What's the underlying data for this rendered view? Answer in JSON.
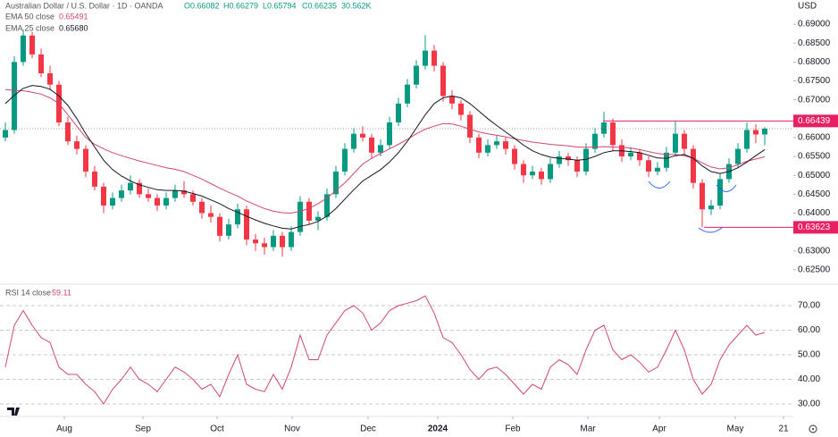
{
  "chart_data": [
    {
      "type": "candlestick",
      "title": "Australian Dollar / U.S. Dollar · 1D · OANDA",
      "currency": "USD",
      "ohlc_labels": [
        "O0.66082",
        "H0.66279",
        "L0.65794",
        "C0.66235",
        "30.562K"
      ],
      "up_color": "#089981",
      "down_color": "#f23645",
      "candles": [
        [
          0.66,
          0.664,
          0.659,
          0.662
        ],
        [
          0.662,
          0.6815,
          0.661,
          0.68
        ],
        [
          0.68,
          0.6885,
          0.679,
          0.687
        ],
        [
          0.687,
          0.688,
          0.681,
          0.682
        ],
        [
          0.682,
          0.6835,
          0.676,
          0.677
        ],
        [
          0.677,
          0.679,
          0.6725,
          0.674
        ],
        [
          0.674,
          0.675,
          0.663,
          0.664
        ],
        [
          0.664,
          0.6655,
          0.658,
          0.659
        ],
        [
          0.659,
          0.6605,
          0.6555,
          0.657
        ],
        [
          0.657,
          0.658,
          0.6495,
          0.651
        ],
        [
          0.651,
          0.6525,
          0.646,
          0.647
        ],
        [
          0.647,
          0.648,
          0.64,
          0.642
        ],
        [
          0.642,
          0.6455,
          0.641,
          0.644
        ],
        [
          0.644,
          0.6475,
          0.643,
          0.646
        ],
        [
          0.646,
          0.65,
          0.645,
          0.648
        ],
        [
          0.648,
          0.649,
          0.644,
          0.645
        ],
        [
          0.645,
          0.6465,
          0.643,
          0.644
        ],
        [
          0.644,
          0.645,
          0.6405,
          0.642
        ],
        [
          0.642,
          0.6455,
          0.641,
          0.644
        ],
        [
          0.644,
          0.6475,
          0.643,
          0.646
        ],
        [
          0.646,
          0.6485,
          0.644,
          0.645
        ],
        [
          0.645,
          0.646,
          0.642,
          0.643
        ],
        [
          0.643,
          0.644,
          0.6385,
          0.64
        ],
        [
          0.64,
          0.642,
          0.6375,
          0.639
        ],
        [
          0.639,
          0.64,
          0.6325,
          0.634
        ],
        [
          0.634,
          0.6385,
          0.633,
          0.637
        ],
        [
          0.637,
          0.6425,
          0.636,
          0.641
        ],
        [
          0.641,
          0.642,
          0.6315,
          0.633
        ],
        [
          0.633,
          0.6345,
          0.63,
          0.632
        ],
        [
          0.632,
          0.6335,
          0.629,
          0.631
        ],
        [
          0.631,
          0.6355,
          0.63,
          0.634
        ],
        [
          0.634,
          0.635,
          0.6285,
          0.631
        ],
        [
          0.631,
          0.6365,
          0.63,
          0.635
        ],
        [
          0.635,
          0.6445,
          0.634,
          0.643
        ],
        [
          0.643,
          0.644,
          0.637,
          0.638
        ],
        [
          0.638,
          0.6405,
          0.6355,
          0.639
        ],
        [
          0.639,
          0.6465,
          0.638,
          0.645
        ],
        [
          0.645,
          0.6525,
          0.644,
          0.651
        ],
        [
          0.651,
          0.6585,
          0.65,
          0.657
        ],
        [
          0.657,
          0.6625,
          0.656,
          0.661
        ],
        [
          0.661,
          0.663,
          0.659,
          0.66
        ],
        [
          0.66,
          0.661,
          0.6545,
          0.656
        ],
        [
          0.656,
          0.6595,
          0.655,
          0.658
        ],
        [
          0.658,
          0.6655,
          0.657,
          0.664
        ],
        [
          0.664,
          0.6705,
          0.663,
          0.669
        ],
        [
          0.669,
          0.6755,
          0.668,
          0.674
        ],
        [
          0.674,
          0.6805,
          0.673,
          0.679
        ],
        [
          0.679,
          0.6871,
          0.678,
          0.683
        ],
        [
          0.683,
          0.6845,
          0.6775,
          0.679
        ],
        [
          0.679,
          0.68,
          0.6695,
          0.671
        ],
        [
          0.671,
          0.6725,
          0.6675,
          0.669
        ],
        [
          0.669,
          0.67,
          0.6645,
          0.666
        ],
        [
          0.666,
          0.667,
          0.6585,
          0.66
        ],
        [
          0.66,
          0.661,
          0.6545,
          0.656
        ],
        [
          0.656,
          0.6595,
          0.655,
          0.658
        ],
        [
          0.658,
          0.6605,
          0.657,
          0.659
        ],
        [
          0.659,
          0.66,
          0.6555,
          0.657
        ],
        [
          0.657,
          0.658,
          0.6515,
          0.653
        ],
        [
          0.653,
          0.654,
          0.648,
          0.65
        ],
        [
          0.65,
          0.6525,
          0.649,
          0.651
        ],
        [
          0.651,
          0.652,
          0.6475,
          0.649
        ],
        [
          0.649,
          0.6545,
          0.648,
          0.653
        ],
        [
          0.653,
          0.6565,
          0.652,
          0.655
        ],
        [
          0.655,
          0.656,
          0.6525,
          0.654
        ],
        [
          0.654,
          0.655,
          0.6495,
          0.651
        ],
        [
          0.651,
          0.6585,
          0.65,
          0.657
        ],
        [
          0.657,
          0.6625,
          0.656,
          0.661
        ],
        [
          0.661,
          0.6668,
          0.66,
          0.664
        ],
        [
          0.664,
          0.665,
          0.6565,
          0.658
        ],
        [
          0.658,
          0.6595,
          0.6535,
          0.655
        ],
        [
          0.655,
          0.6575,
          0.654,
          0.656
        ],
        [
          0.656,
          0.657,
          0.6525,
          0.654
        ],
        [
          0.654,
          0.655,
          0.6495,
          0.651
        ],
        [
          0.651,
          0.6535,
          0.65,
          0.652
        ],
        [
          0.652,
          0.6575,
          0.651,
          0.656
        ],
        [
          0.656,
          0.6644,
          0.655,
          0.661
        ],
        [
          0.661,
          0.662,
          0.6555,
          0.657
        ],
        [
          0.657,
          0.658,
          0.6465,
          0.648
        ],
        [
          0.648,
          0.649,
          0.6362,
          0.641
        ],
        [
          0.641,
          0.6435,
          0.6395,
          0.642
        ],
        [
          0.642,
          0.6505,
          0.641,
          0.649
        ],
        [
          0.649,
          0.6545,
          0.648,
          0.653
        ],
        [
          0.653,
          0.6585,
          0.652,
          0.657
        ],
        [
          0.657,
          0.664,
          0.656,
          0.662
        ],
        [
          0.662,
          0.6635,
          0.6585,
          0.66082
        ],
        [
          0.66082,
          0.66279,
          0.65794,
          0.66235
        ]
      ],
      "series": [
        {
          "name": "EMA 50 close",
          "value_label": "0.65491",
          "color": "#d0466e",
          "values": [
            0.6727,
            0.6725,
            0.6724,
            0.672,
            0.6715,
            0.6705,
            0.669,
            0.666,
            0.663,
            0.66,
            0.6582,
            0.657,
            0.656,
            0.6552,
            0.6545,
            0.6538,
            0.6532,
            0.6526,
            0.652,
            0.6516,
            0.651,
            0.65,
            0.649,
            0.6478,
            0.6466,
            0.6455,
            0.6445,
            0.6432,
            0.6422,
            0.6412,
            0.6405,
            0.6401,
            0.64,
            0.6405,
            0.6412,
            0.6425,
            0.644,
            0.646,
            0.648,
            0.6505,
            0.653,
            0.6545,
            0.6558,
            0.657,
            0.6582,
            0.6595,
            0.661,
            0.6622,
            0.663,
            0.6637,
            0.6636,
            0.663,
            0.6622,
            0.6615,
            0.661,
            0.6606,
            0.6602,
            0.6597,
            0.6592,
            0.6588,
            0.6585,
            0.6582,
            0.658,
            0.6578,
            0.6575,
            0.6574,
            0.6575,
            0.6576,
            0.6575,
            0.6574,
            0.6572,
            0.6568,
            0.6563,
            0.6558,
            0.6555,
            0.6555,
            0.6552,
            0.6545,
            0.6533,
            0.6522,
            0.6517,
            0.652,
            0.6528,
            0.6537,
            0.6543,
            0.65491
          ]
        },
        {
          "name": "EMA 25 close",
          "value_label": "0.65680",
          "color": "#131722",
          "values": [
            0.669,
            0.6712,
            0.673,
            0.6738,
            0.6735,
            0.6728,
            0.671,
            0.6685,
            0.665,
            0.661,
            0.6575,
            0.654,
            0.6515,
            0.6498,
            0.6485,
            0.6475,
            0.6468,
            0.6462,
            0.646,
            0.646,
            0.6458,
            0.6452,
            0.6445,
            0.6435,
            0.6425,
            0.6412,
            0.6402,
            0.6392,
            0.6382,
            0.6373,
            0.6366,
            0.636,
            0.6358,
            0.6365,
            0.637,
            0.6378,
            0.6392,
            0.6412,
            0.6437,
            0.6462,
            0.6485,
            0.65,
            0.6515,
            0.6535,
            0.656,
            0.659,
            0.6625,
            0.666,
            0.669,
            0.6705,
            0.671,
            0.6705,
            0.669,
            0.667,
            0.665,
            0.6632,
            0.6615,
            0.6598,
            0.658,
            0.6565,
            0.6555,
            0.6548,
            0.6545,
            0.6543,
            0.654,
            0.6542,
            0.655,
            0.656,
            0.6565,
            0.6565,
            0.6563,
            0.656,
            0.6553,
            0.6546,
            0.6545,
            0.6552,
            0.6555,
            0.6545,
            0.6525,
            0.651,
            0.6505,
            0.651,
            0.652,
            0.6535,
            0.6552,
            0.6568
          ]
        }
      ],
      "price_lines": [
        0.66439,
        0.63623
      ],
      "price_line_color": "#e91e63",
      "xlim": [
        -0.6,
        88.2
      ],
      "xticks": [
        {
          "value": 6.6,
          "label": "Aug"
        },
        {
          "value": 15.4,
          "label": "Sep"
        },
        {
          "value": 23.7,
          "label": "Oct"
        },
        {
          "value": 32.1,
          "label": "Nov"
        },
        {
          "value": 40.6,
          "label": "Dec"
        },
        {
          "value": 48.4,
          "label": "2024"
        },
        {
          "value": 56.8,
          "label": "Feb"
        },
        {
          "value": 65.2,
          "label": "Mar"
        },
        {
          "value": 73.2,
          "label": "Apr"
        },
        {
          "value": 81.7,
          "label": "May"
        },
        {
          "value": 87.1,
          "label": "21"
        }
      ],
      "ylim": [
        0.6219,
        0.6964
      ],
      "yticks": [
        {
          "value": 0.69,
          "label": "0.69000"
        },
        {
          "value": 0.685,
          "label": "0.68500"
        },
        {
          "value": 0.68,
          "label": "0.68000"
        },
        {
          "value": 0.675,
          "label": "0.67500"
        },
        {
          "value": 0.67,
          "label": "0.67000"
        },
        {
          "value": 0.66,
          "label": "0.66000"
        },
        {
          "value": 0.655,
          "label": "0.65500"
        },
        {
          "value": 0.65,
          "label": "0.65000"
        },
        {
          "value": 0.645,
          "label": "0.64500"
        },
        {
          "value": 0.64,
          "label": "0.64000"
        },
        {
          "value": 0.63,
          "label": "0.63000"
        },
        {
          "value": 0.625,
          "label": "0.62500"
        }
      ]
    },
    {
      "type": "line",
      "title": "RSI 14 close",
      "value_label": "59.11",
      "color": "#d0466e",
      "values": [
        45,
        62,
        68,
        62,
        57,
        55,
        45,
        42,
        42,
        38,
        35,
        30,
        36,
        40,
        45,
        40,
        38,
        35,
        40,
        45,
        43,
        40,
        36,
        38,
        33,
        42,
        50,
        38,
        36,
        35,
        42,
        36,
        45,
        58,
        48,
        48,
        58,
        63,
        68,
        70,
        67,
        60,
        63,
        68,
        70,
        71,
        72,
        74,
        67,
        57,
        55,
        50,
        44,
        40,
        44,
        45,
        42,
        38,
        34,
        38,
        36,
        45,
        48,
        46,
        42,
        52,
        60,
        62,
        52,
        48,
        50,
        47,
        43,
        45,
        52,
        60,
        52,
        40,
        34,
        38,
        48,
        54,
        58,
        62,
        58,
        59.11
      ],
      "ylim": [
        27.1,
        78
      ],
      "yticks": [
        {
          "value": 70,
          "label": "70.00"
        },
        {
          "value": 60,
          "label": "60.00"
        },
        {
          "value": 50,
          "label": "50.00"
        },
        {
          "value": 40,
          "label": "40.00"
        },
        {
          "value": 30,
          "label": "30.00"
        }
      ]
    }
  ]
}
